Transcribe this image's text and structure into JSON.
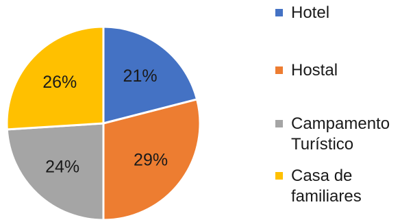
{
  "chart_data": {
    "type": "pie",
    "start_angle_deg": 0,
    "direction": "clockwise",
    "slices": [
      {
        "label": "Hotel",
        "value": 21,
        "display": "21%",
        "color": "#4472C4"
      },
      {
        "label": "Hostal",
        "value": 29,
        "display": "29%",
        "color": "#ED7D31"
      },
      {
        "label": "Campamento\nTurístico",
        "value": 24,
        "display": "24%",
        "color": "#A5A5A5"
      },
      {
        "label": "Casa de\nfamiliares",
        "value": 26,
        "display": "26%",
        "color": "#FFC000"
      }
    ],
    "legend": "right"
  }
}
